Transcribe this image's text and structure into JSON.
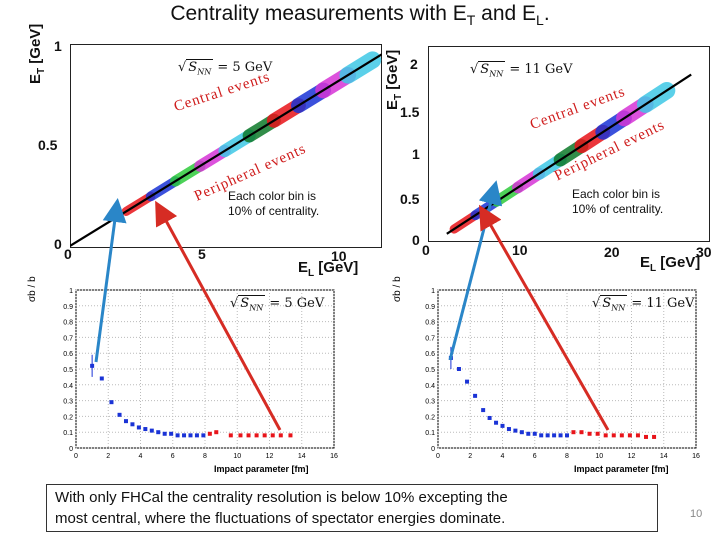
{
  "slide": {
    "title_text": "Centrality measurements with E",
    "title_sub1": "T",
    "title_mid": " and E",
    "title_sub2": "L",
    "title_end": ".",
    "bottom_text_line1": "With only FHCal the centrality resolution is below 10% excepting the",
    "bottom_text_line2": "most central, where the fluctuations of spectator energies dominate.",
    "page_number": "10",
    "note_line1": "Each color bin is",
    "note_line2": "10% of centrality.",
    "central_label": "Central events",
    "peripheral_label": "Peripheral events",
    "sqrt_s": "S",
    "sqrt_sub": "NN",
    "energy_left": "= 5 GeV",
    "energy_right": "= 11 GeV",
    "colors": {
      "red": "#e8141a",
      "blue": "#1a33d6",
      "green": "#2ecb3c",
      "magenta": "#d634d6",
      "cyan": "#3fc8e6",
      "darkgreen": "#0e7a2a",
      "arrow_blue": "#2a86c8",
      "arrow_red": "#d62c24"
    }
  },
  "chart_data": [
    {
      "type": "scatter",
      "xlabel_main": "E",
      "xlabel_sub": "L",
      "xlabel_unit": " [GeV]",
      "ylabel_main": "E",
      "ylabel_sub": "T",
      "ylabel_unit": " [GeV]",
      "xlim": [
        0,
        12
      ],
      "ylim": [
        0,
        1
      ],
      "xticks": [
        "0",
        "5",
        "10"
      ],
      "yticks": [
        "0",
        "0.5",
        "1"
      ],
      "line": [
        [
          0,
          0.01
        ],
        [
          12,
          0.95
        ]
      ]
    },
    {
      "type": "scatter",
      "xlabel_main": "E",
      "xlabel_sub": "L",
      "xlabel_unit": " [GeV]",
      "ylabel_main": "E",
      "ylabel_sub": "T",
      "ylabel_unit": " [GeV]",
      "xlim": [
        0,
        30
      ],
      "ylim": [
        0,
        2.4
      ],
      "xticks": [
        "0",
        "10",
        "20",
        "30"
      ],
      "yticks": [
        "0",
        "0.5",
        "1",
        "1.5",
        "2"
      ],
      "line": [
        [
          2,
          0.1
        ],
        [
          28,
          2.05
        ]
      ]
    },
    {
      "type": "scatter",
      "ylabel": "σb / b",
      "xlabel": "Impact parameter [fm]",
      "xlim": [
        0,
        16
      ],
      "ylim": [
        0,
        1
      ],
      "xticks": [
        "0",
        "2",
        "4",
        "6",
        "8",
        "10",
        "12",
        "14",
        "16"
      ],
      "yticks": [
        "0",
        "0.1",
        "0.2",
        "0.3",
        "0.4",
        "0.5",
        "0.6",
        "0.7",
        "0.8",
        "0.9",
        "1"
      ],
      "series": [
        {
          "color": "#1a33d6",
          "points": [
            [
              1.0,
              0.52
            ],
            [
              1.6,
              0.44
            ],
            [
              2.2,
              0.29
            ],
            [
              2.7,
              0.21
            ],
            [
              3.1,
              0.17
            ],
            [
              3.5,
              0.15
            ],
            [
              3.9,
              0.13
            ],
            [
              4.3,
              0.12
            ],
            [
              4.7,
              0.11
            ],
            [
              5.1,
              0.1
            ],
            [
              5.5,
              0.09
            ],
            [
              5.9,
              0.09
            ],
            [
              6.3,
              0.08
            ],
            [
              6.7,
              0.08
            ],
            [
              7.1,
              0.08
            ],
            [
              7.5,
              0.08
            ],
            [
              7.9,
              0.08
            ]
          ]
        },
        {
          "color": "#e8141a",
          "points": [
            [
              8.3,
              0.09
            ],
            [
              8.7,
              0.1
            ],
            [
              9.6,
              0.08
            ],
            [
              10.2,
              0.08
            ],
            [
              10.7,
              0.08
            ],
            [
              11.2,
              0.08
            ],
            [
              11.7,
              0.08
            ],
            [
              12.2,
              0.08
            ],
            [
              12.7,
              0.08
            ],
            [
              13.3,
              0.08
            ]
          ]
        }
      ],
      "error_bars": [
        [
          1.0,
          0.52,
          0.07
        ]
      ]
    },
    {
      "type": "scatter",
      "ylabel": "σb / b",
      "xlabel": "Impact parameter [fm]",
      "xlim": [
        0,
        16
      ],
      "ylim": [
        0,
        1
      ],
      "xticks": [
        "0",
        "2",
        "4",
        "6",
        "8",
        "10",
        "12",
        "14",
        "16"
      ],
      "yticks": [
        "0",
        "0.1",
        "0.2",
        "0.3",
        "0.4",
        "0.5",
        "0.6",
        "0.7",
        "0.8",
        "0.9",
        "1"
      ],
      "series": [
        {
          "color": "#1a33d6",
          "points": [
            [
              0.8,
              0.57
            ],
            [
              1.3,
              0.5
            ],
            [
              1.8,
              0.42
            ],
            [
              2.3,
              0.33
            ],
            [
              2.8,
              0.24
            ],
            [
              3.2,
              0.19
            ],
            [
              3.6,
              0.16
            ],
            [
              4.0,
              0.14
            ],
            [
              4.4,
              0.12
            ],
            [
              4.8,
              0.11
            ],
            [
              5.2,
              0.1
            ],
            [
              5.6,
              0.09
            ],
            [
              6.0,
              0.09
            ],
            [
              6.4,
              0.08
            ],
            [
              6.8,
              0.08
            ],
            [
              7.2,
              0.08
            ],
            [
              7.6,
              0.08
            ],
            [
              8.0,
              0.08
            ]
          ]
        },
        {
          "color": "#e8141a",
          "points": [
            [
              8.4,
              0.1
            ],
            [
              8.9,
              0.1
            ],
            [
              9.4,
              0.09
            ],
            [
              9.9,
              0.09
            ],
            [
              10.4,
              0.08
            ],
            [
              10.9,
              0.08
            ],
            [
              11.4,
              0.08
            ],
            [
              11.9,
              0.08
            ],
            [
              12.4,
              0.08
            ],
            [
              12.9,
              0.07
            ],
            [
              13.4,
              0.07
            ]
          ]
        }
      ],
      "error_bars": [
        [
          0.8,
          0.57,
          0.07
        ]
      ]
    }
  ]
}
